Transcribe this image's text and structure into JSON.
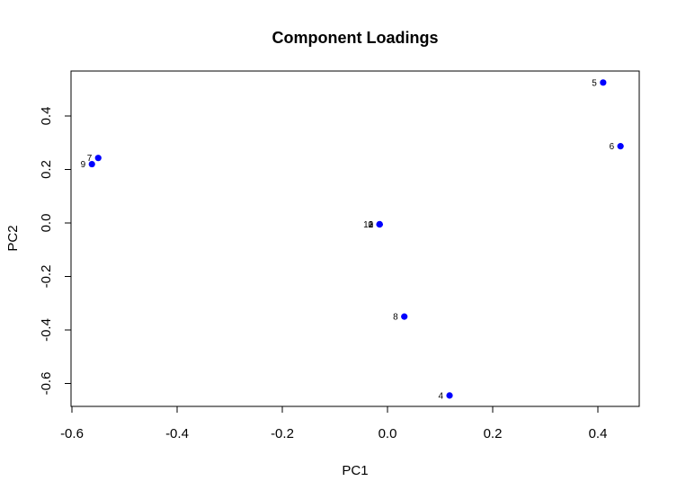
{
  "chart_data": {
    "type": "scatter",
    "title": "Component Loadings",
    "xlabel": "PC1",
    "ylabel": "PC2",
    "xlim": [
      -0.6,
      0.45
    ],
    "ylim": [
      -0.65,
      0.55
    ],
    "x_ticks": [
      -0.6,
      -0.4,
      -0.2,
      0.0,
      0.2,
      0.4
    ],
    "x_tick_labels": [
      "-0.6",
      "-0.4",
      "-0.2",
      "0.0",
      "0.2",
      "0.4"
    ],
    "y_ticks": [
      -0.6,
      -0.4,
      -0.2,
      0.0,
      0.2,
      0.4
    ],
    "y_tick_labels": [
      "-0.6",
      "-0.4",
      "-0.2",
      "0.0",
      "0.2",
      "0.4"
    ],
    "grid": false,
    "point_color": "#0000ff",
    "points": [
      {
        "label": "1",
        "x": -0.015,
        "y": -0.005
      },
      {
        "label": "2",
        "x": -0.015,
        "y": -0.005
      },
      {
        "label": "3",
        "x": -0.015,
        "y": -0.005
      },
      {
        "label": "4",
        "x": 0.118,
        "y": -0.645
      },
      {
        "label": "5",
        "x": 0.41,
        "y": 0.525
      },
      {
        "label": "6",
        "x": 0.443,
        "y": 0.287
      },
      {
        "label": "7",
        "x": -0.55,
        "y": 0.243
      },
      {
        "label": "8",
        "x": 0.032,
        "y": -0.35
      },
      {
        "label": "9",
        "x": -0.562,
        "y": 0.22
      },
      {
        "label": "10",
        "x": -0.015,
        "y": -0.005
      }
    ]
  }
}
